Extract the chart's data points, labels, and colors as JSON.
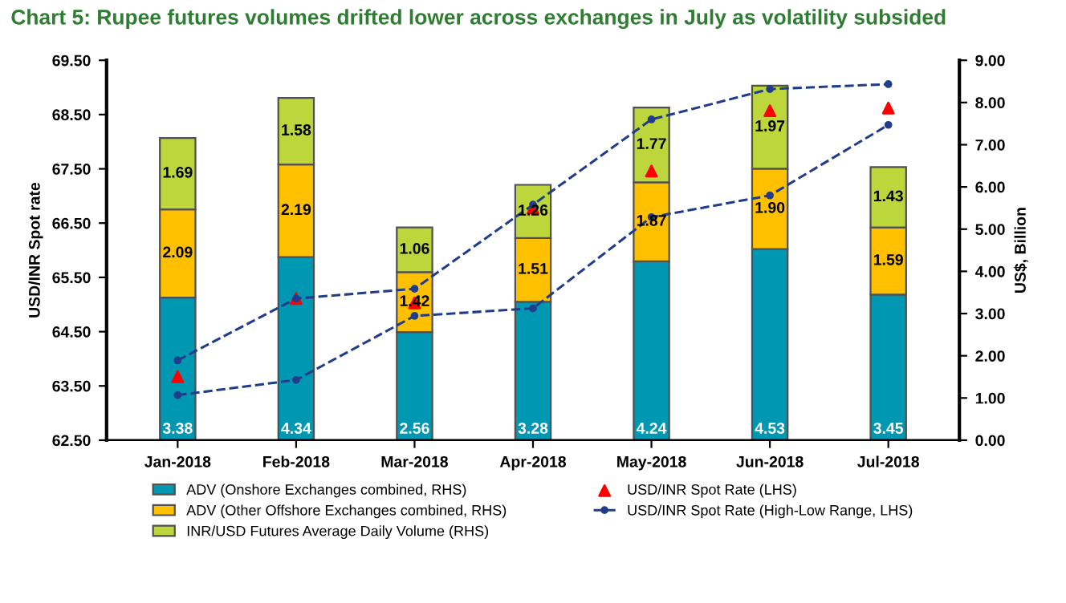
{
  "chart_data": {
    "type": "bar",
    "title": "Chart 5: Rupee futures volumes drifted lower across exchanges in July as volatility subsided",
    "categories": [
      "Jan-2018",
      "Feb-2018",
      "Mar-2018",
      "Apr-2018",
      "May-2018",
      "Jun-2018",
      "Jul-2018"
    ],
    "stacked": true,
    "grid": false,
    "legend": "bottom",
    "ylabel": "USD/INR Spot rate",
    "y2label": "US$, Billion",
    "ylim": [
      62.5,
      69.5
    ],
    "yticks": [
      {
        "value": 62.5,
        "label": "62.50"
      },
      {
        "value": 63.5,
        "label": "63.50"
      },
      {
        "value": 64.5,
        "label": "64.50"
      },
      {
        "value": 65.5,
        "label": "65.50"
      },
      {
        "value": 66.5,
        "label": "66.50"
      },
      {
        "value": 67.5,
        "label": "67.50"
      },
      {
        "value": 68.5,
        "label": "68.50"
      },
      {
        "value": 69.5,
        "label": "69.50"
      }
    ],
    "y2lim": [
      0,
      9
    ],
    "y2ticks": [
      {
        "value": 0,
        "label": "0.00"
      },
      {
        "value": 1,
        "label": "1.00"
      },
      {
        "value": 2,
        "label": "2.00"
      },
      {
        "value": 3,
        "label": "3.00"
      },
      {
        "value": 4,
        "label": "4.00"
      },
      {
        "value": 5,
        "label": "5.00"
      },
      {
        "value": 6,
        "label": "6.00"
      },
      {
        "value": 7,
        "label": "7.00"
      },
      {
        "value": 8,
        "label": "8.00"
      },
      {
        "value": 9,
        "label": "9.00"
      }
    ],
    "series": [
      {
        "name": "ADV (Onshore Exchanges combined, RHS)",
        "axis": "y2",
        "color": "#0097b2",
        "values": [
          3.38,
          4.34,
          2.56,
          3.28,
          4.24,
          4.53,
          3.45
        ],
        "value_labels": [
          "3.38",
          "4.34",
          "2.56",
          "3.28",
          "4.24",
          "4.53",
          "3.45"
        ]
      },
      {
        "name": "ADV (Other Offshore Exchanges combined, RHS)",
        "axis": "y2",
        "color": "#ffc000",
        "values": [
          2.09,
          2.19,
          1.42,
          1.51,
          1.87,
          1.9,
          1.59
        ],
        "value_labels": [
          "2.09",
          "2.19",
          "1.42",
          "1.51",
          "1.87",
          "1.90",
          "1.59"
        ]
      },
      {
        "name": "INR/USD Futures Average Daily Volume (RHS)",
        "axis": "y2",
        "color": "#bcd63b",
        "values": [
          1.69,
          1.58,
          1.06,
          1.26,
          1.77,
          1.97,
          1.43
        ],
        "value_labels": [
          "1.69",
          "1.58",
          "1.06",
          "1.26",
          "1.77",
          "1.97",
          "1.43"
        ]
      },
      {
        "name": "USD/INR Spot Rate (LHS)",
        "type": "scatter",
        "axis": "y",
        "color": "#ff0000",
        "marker": "triangle",
        "values": [
          63.67,
          65.11,
          65.03,
          66.78,
          67.46,
          68.57,
          68.62
        ]
      },
      {
        "name": "USD/INR Spot Rate (High-Low Range, LHS)",
        "type": "line",
        "axis": "y",
        "color": "#203d8c",
        "marker": "circle",
        "line_style": "dashed",
        "values": [
          63.97,
          65.11,
          65.29,
          66.84,
          68.41,
          68.97,
          69.06
        ]
      },
      {
        "type": "line",
        "axis": "y",
        "color": "#203d8c",
        "marker": "circle",
        "line_style": "dashed",
        "values": [
          63.33,
          63.61,
          64.79,
          64.93,
          66.61,
          67.01,
          68.31
        ]
      }
    ]
  }
}
